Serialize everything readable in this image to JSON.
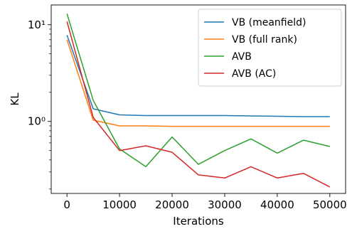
{
  "chart_data": {
    "type": "line",
    "xlabel": "Iterations",
    "ylabel": "KL",
    "x_ticks": [
      0,
      10000,
      20000,
      30000,
      40000,
      50000
    ],
    "x_tick_labels": [
      "0",
      "10000",
      "20000",
      "30000",
      "40000",
      "50000"
    ],
    "y_scale": "log",
    "y_ticks": [
      1,
      10
    ],
    "y_tick_labels": [
      "10⁰",
      "10¹"
    ],
    "xlim": [
      -3000,
      53000
    ],
    "ylim": [
      0.18,
      16
    ],
    "grid": false,
    "legend_position": "top-right",
    "series": [
      {
        "name": "VB (meanfield)",
        "color": "#1f77b4",
        "x": [
          0,
          5000,
          10000,
          15000,
          20000,
          25000,
          30000,
          35000,
          40000,
          45000,
          50000
        ],
        "y": [
          7.8,
          1.35,
          1.17,
          1.15,
          1.15,
          1.15,
          1.15,
          1.14,
          1.13,
          1.12,
          1.12
        ]
      },
      {
        "name": "VB (full rank)",
        "color": "#ff7f0e",
        "x": [
          0,
          5000,
          10000,
          15000,
          20000,
          25000,
          30000,
          35000,
          40000,
          45000,
          50000
        ],
        "y": [
          7.0,
          1.03,
          0.9,
          0.9,
          0.89,
          0.89,
          0.89,
          0.89,
          0.89,
          0.89,
          0.89
        ]
      },
      {
        "name": "AVB",
        "color": "#2ca02c",
        "x": [
          0,
          5000,
          10000,
          15000,
          20000,
          25000,
          30000,
          35000,
          40000,
          45000,
          50000
        ],
        "y": [
          13.0,
          1.65,
          0.52,
          0.34,
          0.69,
          0.36,
          0.5,
          0.66,
          0.47,
          0.64,
          0.55
        ]
      },
      {
        "name": "AVB (AC)",
        "color": "#d62728",
        "x": [
          0,
          5000,
          10000,
          15000,
          20000,
          25000,
          30000,
          35000,
          40000,
          45000,
          50000
        ],
        "y": [
          10.8,
          1.1,
          0.5,
          0.56,
          0.48,
          0.28,
          0.26,
          0.34,
          0.26,
          0.29,
          0.21
        ]
      }
    ]
  }
}
